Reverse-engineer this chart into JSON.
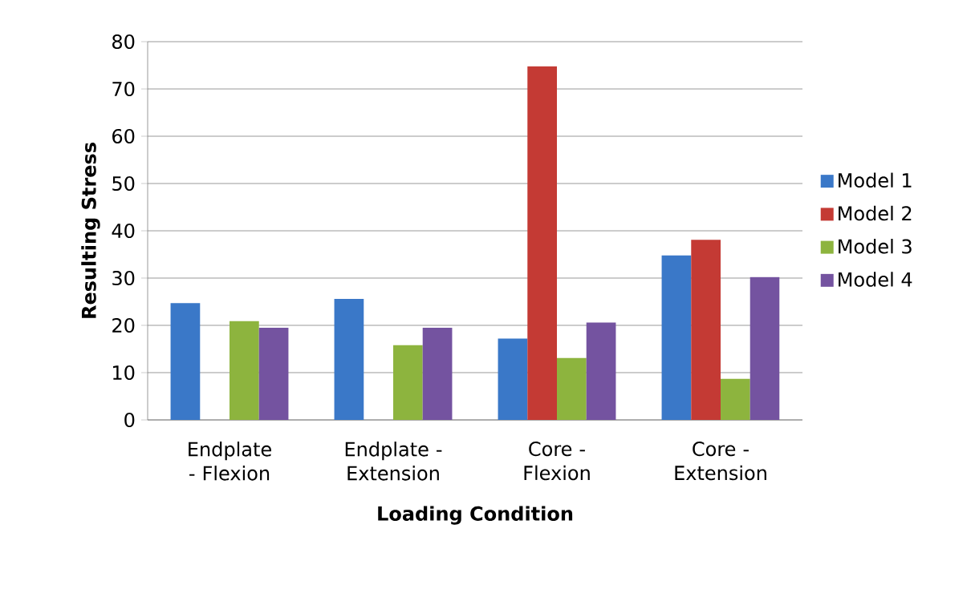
{
  "chart_data": {
    "type": "bar",
    "xlabel": "Loading Condition",
    "ylabel": "Resulting Stress",
    "categories": [
      "Endplate - Flexion",
      "Endplate - Extension",
      "Core - Flexion",
      "Core - Extension"
    ],
    "series": [
      {
        "name": "Model 1",
        "color": "#3a78c8",
        "values": [
          24.7,
          25.6,
          17.2,
          34.8
        ]
      },
      {
        "name": "Model 2",
        "color": "#c43a34",
        "values": [
          null,
          null,
          74.8,
          38.1
        ]
      },
      {
        "name": "Model 3",
        "color": "#8db43e",
        "values": [
          20.9,
          15.8,
          13.1,
          8.7
        ]
      },
      {
        "name": "Model 4",
        "color": "#7453a0",
        "values": [
          19.5,
          19.5,
          20.6,
          30.2
        ]
      }
    ],
    "ylim": [
      0,
      80
    ],
    "yticks": [
      0,
      10,
      20,
      30,
      40,
      50,
      60,
      70,
      80
    ],
    "grid": "y",
    "legend": "right"
  }
}
